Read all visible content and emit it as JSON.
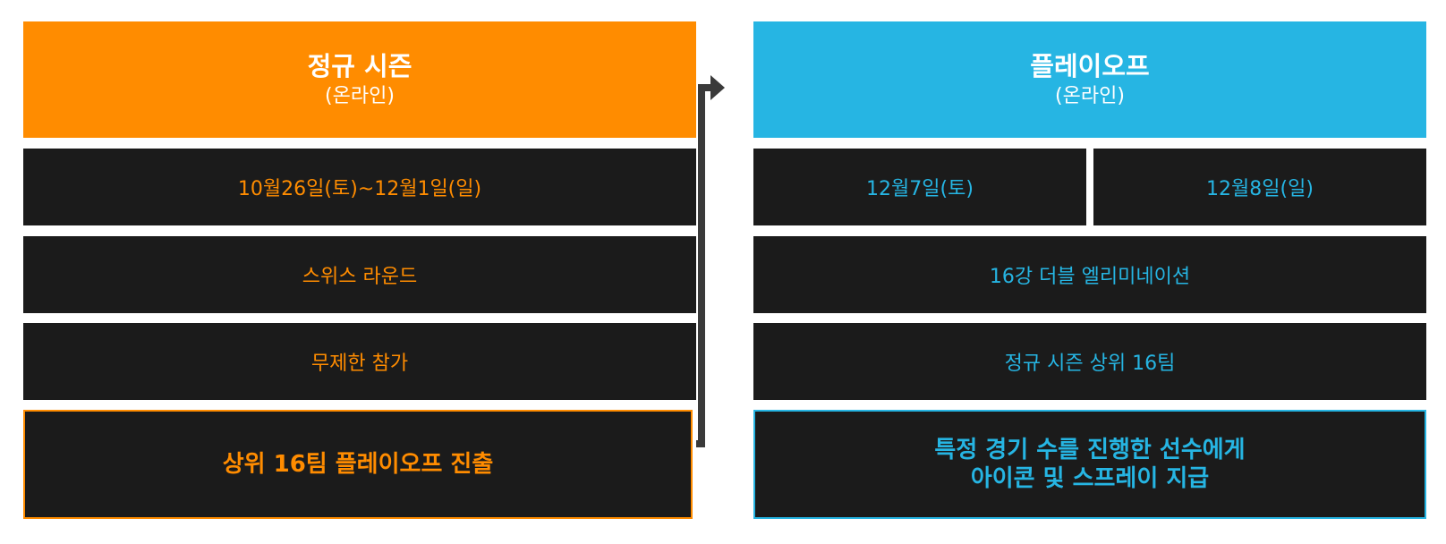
{
  "regular_season": {
    "title": "정규 시즌",
    "subtitle": "(온라인)",
    "dates": "10월26일(토)~12월1일(일)",
    "format": "스위스 라운드",
    "entry": "무제한 참가",
    "result": "상위 16팀 플레이오프 진출"
  },
  "playoffs": {
    "title": "플레이오프",
    "subtitle": "(온라인)",
    "date_1": "12월7일(토)",
    "date_2": "12월8일(일)",
    "format": "16강 더블 엘리미네이션",
    "entry": "정규 시즌 상위 16팀",
    "result_line1": "특정 경기 수를 진행한 선수에게",
    "result_line2": "아이콘 및 스프레이 지급"
  },
  "colors": {
    "regular_season_accent": "#ff8c00",
    "playoffs_accent": "#26b5e3",
    "row_background": "#1b1b1b",
    "arrow": "#3a3a3a"
  },
  "icons": {
    "connector": "right-arrow-icon"
  }
}
